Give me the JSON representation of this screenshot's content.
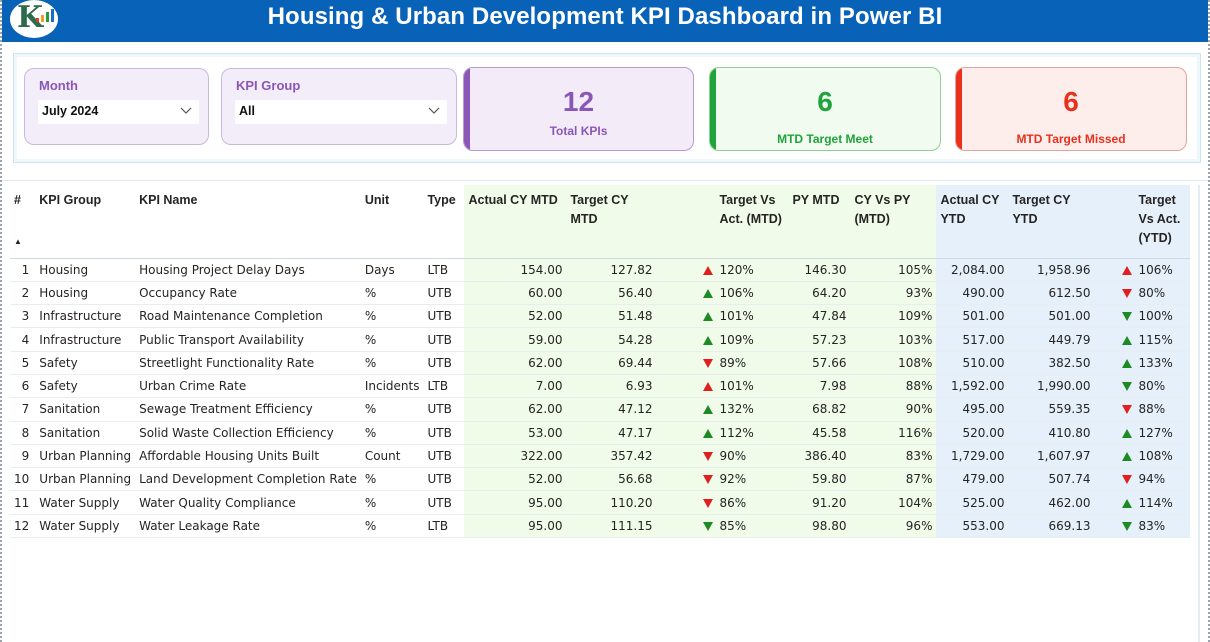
{
  "header": {
    "title": "Housing & Urban Development KPI Dashboard in Power BI",
    "logo_letter": "K"
  },
  "colors": {
    "header_bg": "#0862b8",
    "purple": "#8b57b7",
    "green": "#1fa33a",
    "red": "#e8301c",
    "arrow_green": "#1e8a24",
    "arrow_red": "#e02020",
    "mtd_bg": "#f0fbea",
    "ytd_bg": "#e6f0fa"
  },
  "filters": {
    "month": {
      "label": "Month",
      "value": "July 2024"
    },
    "kpi_group": {
      "label": "KPI Group",
      "value": "All"
    }
  },
  "cards": {
    "total": {
      "value": "12",
      "label": "Total KPIs"
    },
    "meet": {
      "value": "6",
      "label": "MTD Target Meet"
    },
    "missed": {
      "value": "6",
      "label": "MTD Target Missed"
    }
  },
  "table": {
    "columns": {
      "idx": "#",
      "group": "KPI Group",
      "name": "KPI Name",
      "unit": "Unit",
      "type": "Type",
      "actual_mtd": "Actual CY MTD",
      "target_mtd": "Target CY MTD",
      "tva_mtd": "Target Vs Act. (MTD)",
      "py_mtd": "PY MTD",
      "cyvspy_mtd": "CY Vs PY (MTD)",
      "actual_ytd": "Actual CY YTD",
      "target_ytd": "Target CY YTD",
      "tva_ytd": "Target Vs Act. (YTD)"
    },
    "sort_indicator": "ascending",
    "rows": [
      {
        "idx": "1",
        "group": "Housing",
        "name": "Housing Project Delay Days",
        "unit": "Days",
        "type": "LTB",
        "actual_mtd": "154.00",
        "target_mtd": "127.82",
        "mtd_icon": "up-red",
        "tva_mtd": "120%",
        "py_mtd": "146.30",
        "cyvspy_mtd": "105%",
        "actual_ytd": "2,084.00",
        "target_ytd": "1,958.96",
        "ytd_icon": "up-red",
        "tva_ytd": "106%"
      },
      {
        "idx": "2",
        "group": "Housing",
        "name": "Occupancy Rate",
        "unit": "%",
        "type": "UTB",
        "actual_mtd": "60.00",
        "target_mtd": "56.40",
        "mtd_icon": "up-green",
        "tva_mtd": "106%",
        "py_mtd": "64.20",
        "cyvspy_mtd": "93%",
        "actual_ytd": "490.00",
        "target_ytd": "612.50",
        "ytd_icon": "down-red",
        "tva_ytd": "80%"
      },
      {
        "idx": "3",
        "group": "Infrastructure",
        "name": "Road Maintenance Completion",
        "unit": "%",
        "type": "UTB",
        "actual_mtd": "52.00",
        "target_mtd": "51.48",
        "mtd_icon": "up-green",
        "tva_mtd": "101%",
        "py_mtd": "47.84",
        "cyvspy_mtd": "109%",
        "actual_ytd": "501.00",
        "target_ytd": "501.00",
        "ytd_icon": "down-green",
        "tva_ytd": "100%"
      },
      {
        "idx": "4",
        "group": "Infrastructure",
        "name": "Public Transport Availability",
        "unit": "%",
        "type": "UTB",
        "actual_mtd": "59.00",
        "target_mtd": "54.28",
        "mtd_icon": "up-green",
        "tva_mtd": "109%",
        "py_mtd": "57.23",
        "cyvspy_mtd": "103%",
        "actual_ytd": "517.00",
        "target_ytd": "449.79",
        "ytd_icon": "up-green",
        "tva_ytd": "115%"
      },
      {
        "idx": "5",
        "group": "Safety",
        "name": "Streetlight Functionality Rate",
        "unit": "%",
        "type": "UTB",
        "actual_mtd": "62.00",
        "target_mtd": "69.44",
        "mtd_icon": "down-red",
        "tva_mtd": "89%",
        "py_mtd": "57.66",
        "cyvspy_mtd": "108%",
        "actual_ytd": "510.00",
        "target_ytd": "382.50",
        "ytd_icon": "up-green",
        "tva_ytd": "133%"
      },
      {
        "idx": "6",
        "group": "Safety",
        "name": "Urban Crime Rate",
        "unit": "Incidents",
        "type": "LTB",
        "actual_mtd": "7.00",
        "target_mtd": "6.93",
        "mtd_icon": "up-red",
        "tva_mtd": "101%",
        "py_mtd": "7.98",
        "cyvspy_mtd": "88%",
        "actual_ytd": "1,592.00",
        "target_ytd": "1,990.00",
        "ytd_icon": "down-green",
        "tva_ytd": "80%"
      },
      {
        "idx": "7",
        "group": "Sanitation",
        "name": "Sewage Treatment Efficiency",
        "unit": "%",
        "type": "UTB",
        "actual_mtd": "62.00",
        "target_mtd": "47.12",
        "mtd_icon": "up-green",
        "tva_mtd": "132%",
        "py_mtd": "68.82",
        "cyvspy_mtd": "90%",
        "actual_ytd": "495.00",
        "target_ytd": "559.35",
        "ytd_icon": "down-red",
        "tva_ytd": "88%"
      },
      {
        "idx": "8",
        "group": "Sanitation",
        "name": "Solid Waste Collection Efficiency",
        "unit": "%",
        "type": "UTB",
        "actual_mtd": "53.00",
        "target_mtd": "47.17",
        "mtd_icon": "up-green",
        "tva_mtd": "112%",
        "py_mtd": "45.58",
        "cyvspy_mtd": "116%",
        "actual_ytd": "520.00",
        "target_ytd": "410.80",
        "ytd_icon": "up-green",
        "tva_ytd": "127%"
      },
      {
        "idx": "9",
        "group": "Urban Planning",
        "name": "Affordable Housing Units Built",
        "unit": "Count",
        "type": "UTB",
        "actual_mtd": "322.00",
        "target_mtd": "357.42",
        "mtd_icon": "down-red",
        "tva_mtd": "90%",
        "py_mtd": "386.40",
        "cyvspy_mtd": "83%",
        "actual_ytd": "1,729.00",
        "target_ytd": "1,607.97",
        "ytd_icon": "up-green",
        "tva_ytd": "108%"
      },
      {
        "idx": "10",
        "group": "Urban Planning",
        "name": "Land Development Completion Rate",
        "unit": "%",
        "type": "UTB",
        "actual_mtd": "52.00",
        "target_mtd": "56.68",
        "mtd_icon": "down-red",
        "tva_mtd": "92%",
        "py_mtd": "59.80",
        "cyvspy_mtd": "87%",
        "actual_ytd": "479.00",
        "target_ytd": "507.74",
        "ytd_icon": "down-red",
        "tva_ytd": "94%"
      },
      {
        "idx": "11",
        "group": "Water Supply",
        "name": "Water Quality Compliance",
        "unit": "%",
        "type": "UTB",
        "actual_mtd": "95.00",
        "target_mtd": "110.20",
        "mtd_icon": "down-red",
        "tva_mtd": "86%",
        "py_mtd": "91.20",
        "cyvspy_mtd": "104%",
        "actual_ytd": "525.00",
        "target_ytd": "462.00",
        "ytd_icon": "up-green",
        "tva_ytd": "114%"
      },
      {
        "idx": "12",
        "group": "Water Supply",
        "name": "Water Leakage Rate",
        "unit": "%",
        "type": "LTB",
        "actual_mtd": "95.00",
        "target_mtd": "111.15",
        "mtd_icon": "down-green",
        "tva_mtd": "85%",
        "py_mtd": "98.80",
        "cyvspy_mtd": "96%",
        "actual_ytd": "553.00",
        "target_ytd": "669.13",
        "ytd_icon": "down-green",
        "tva_ytd": "83%"
      }
    ]
  }
}
